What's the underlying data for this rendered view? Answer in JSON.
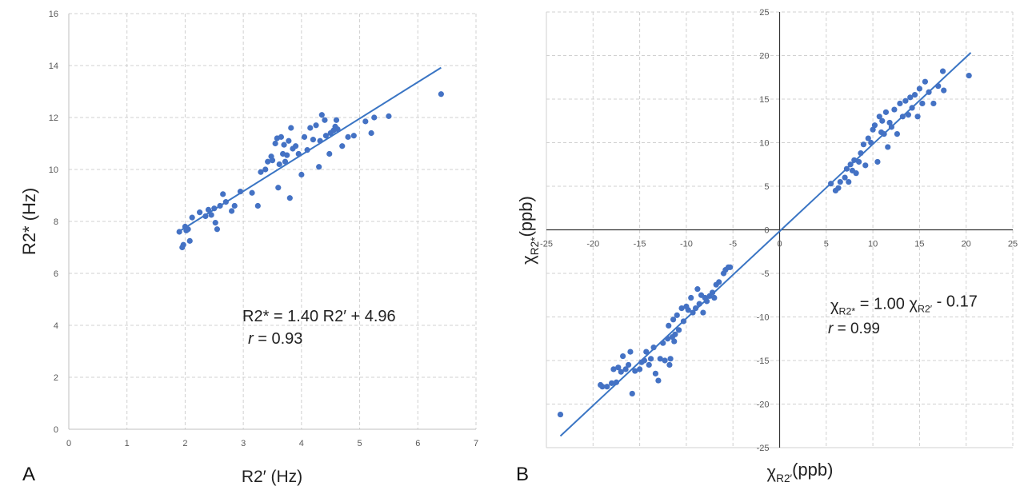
{
  "chart_data": [
    {
      "panel": "A",
      "type": "scatter",
      "xlabel": "R2′ (Hz)",
      "ylabel": "R2* (Hz)",
      "xlim": [
        0,
        7
      ],
      "ylim": [
        0,
        16
      ],
      "xticks": [
        0,
        1,
        2,
        3,
        4,
        5,
        6,
        7
      ],
      "yticks": [
        0,
        2,
        4,
        6,
        8,
        10,
        12,
        14,
        16
      ],
      "grid": true,
      "equation": "R2* = 1.40  R2′ + 4.96",
      "r_label": "r",
      "r_value": "= 0.93",
      "fit": {
        "slope": 1.4,
        "intercept": 4.96,
        "x_range": [
          1.9,
          6.4
        ]
      },
      "points": [
        [
          1.9,
          7.6
        ],
        [
          1.95,
          7.0
        ],
        [
          1.97,
          7.1
        ],
        [
          2.0,
          7.8
        ],
        [
          2.02,
          7.65
        ],
        [
          2.05,
          7.7
        ],
        [
          2.08,
          7.25
        ],
        [
          2.12,
          8.15
        ],
        [
          2.25,
          8.35
        ],
        [
          2.35,
          8.2
        ],
        [
          2.4,
          8.45
        ],
        [
          2.45,
          8.25
        ],
        [
          2.5,
          8.5
        ],
        [
          2.52,
          7.95
        ],
        [
          2.55,
          7.7
        ],
        [
          2.6,
          8.6
        ],
        [
          2.65,
          9.05
        ],
        [
          2.7,
          8.75
        ],
        [
          2.8,
          8.4
        ],
        [
          2.85,
          8.6
        ],
        [
          2.95,
          9.15
        ],
        [
          3.15,
          9.1
        ],
        [
          3.25,
          8.6
        ],
        [
          3.3,
          9.9
        ],
        [
          3.38,
          10.0
        ],
        [
          3.42,
          10.3
        ],
        [
          3.48,
          10.5
        ],
        [
          3.5,
          10.35
        ],
        [
          3.55,
          11.0
        ],
        [
          3.58,
          11.2
        ],
        [
          3.6,
          9.3
        ],
        [
          3.62,
          10.2
        ],
        [
          3.65,
          11.25
        ],
        [
          3.68,
          10.6
        ],
        [
          3.7,
          10.95
        ],
        [
          3.72,
          10.3
        ],
        [
          3.75,
          10.55
        ],
        [
          3.78,
          11.1
        ],
        [
          3.8,
          8.9
        ],
        [
          3.82,
          11.6
        ],
        [
          3.85,
          10.8
        ],
        [
          3.9,
          10.9
        ],
        [
          3.95,
          10.6
        ],
        [
          4.0,
          9.8
        ],
        [
          4.05,
          11.25
        ],
        [
          4.1,
          10.75
        ],
        [
          4.15,
          11.6
        ],
        [
          4.2,
          11.15
        ],
        [
          4.25,
          11.7
        ],
        [
          4.3,
          10.1
        ],
        [
          4.32,
          11.1
        ],
        [
          4.35,
          12.1
        ],
        [
          4.4,
          11.9
        ],
        [
          4.42,
          11.3
        ],
        [
          4.48,
          10.6
        ],
        [
          4.5,
          11.4
        ],
        [
          4.55,
          11.5
        ],
        [
          4.58,
          11.65
        ],
        [
          4.6,
          11.9
        ],
        [
          4.62,
          11.55
        ],
        [
          4.7,
          10.9
        ],
        [
          4.8,
          11.25
        ],
        [
          4.9,
          11.3
        ],
        [
          5.1,
          11.85
        ],
        [
          5.2,
          11.4
        ],
        [
          5.25,
          12.0
        ],
        [
          5.5,
          12.05
        ],
        [
          6.4,
          12.9
        ]
      ]
    },
    {
      "panel": "B",
      "type": "scatter",
      "xlabel": "χR2′(ppb)",
      "ylabel": "χR2*(ppb)",
      "xlim": [
        -25,
        25
      ],
      "ylim": [
        -25,
        25
      ],
      "xticks": [
        -25,
        -20,
        -15,
        -10,
        -5,
        0,
        5,
        10,
        15,
        20,
        25
      ],
      "yticks": [
        -25,
        -20,
        -15,
        -10,
        -5,
        0,
        5,
        10,
        15,
        20,
        25
      ],
      "grid": true,
      "equation_parts": [
        "χ",
        "R2*",
        " = 1.00  χ",
        "R2′",
        " - 0.17"
      ],
      "r_label": "r",
      "r_value": "= 0.99",
      "fit": {
        "slope": 1.0,
        "intercept": -0.17,
        "x_range": [
          -23.5,
          20.5
        ]
      },
      "points": [
        [
          -23.5,
          -21.2
        ],
        [
          -19.2,
          -17.8
        ],
        [
          -19.0,
          -18.0
        ],
        [
          -18.5,
          -18.0
        ],
        [
          -18.0,
          -17.6
        ],
        [
          -17.8,
          -16.0
        ],
        [
          -17.5,
          -17.5
        ],
        [
          -17.3,
          -15.8
        ],
        [
          -17.0,
          -16.3
        ],
        [
          -16.8,
          -14.5
        ],
        [
          -16.5,
          -16.0
        ],
        [
          -16.2,
          -15.5
        ],
        [
          -16.0,
          -14.0
        ],
        [
          -15.8,
          -18.8
        ],
        [
          -15.5,
          -16.2
        ],
        [
          -15.0,
          -16.0
        ],
        [
          -14.8,
          -15.2
        ],
        [
          -14.5,
          -15.0
        ],
        [
          -14.3,
          -14.0
        ],
        [
          -14.0,
          -15.5
        ],
        [
          -13.8,
          -14.8
        ],
        [
          -13.5,
          -13.5
        ],
        [
          -13.3,
          -16.5
        ],
        [
          -13.0,
          -17.3
        ],
        [
          -12.8,
          -14.8
        ],
        [
          -12.5,
          -13.0
        ],
        [
          -12.3,
          -15.0
        ],
        [
          -12.0,
          -12.5
        ],
        [
          -11.9,
          -11.0
        ],
        [
          -11.8,
          -15.5
        ],
        [
          -11.7,
          -14.8
        ],
        [
          -11.5,
          -12.3
        ],
        [
          -11.4,
          -10.3
        ],
        [
          -11.3,
          -12.8
        ],
        [
          -11.2,
          -12.0
        ],
        [
          -11.0,
          -9.8
        ],
        [
          -10.8,
          -11.5
        ],
        [
          -10.5,
          -9.0
        ],
        [
          -10.3,
          -10.5
        ],
        [
          -10.0,
          -8.8
        ],
        [
          -9.8,
          -9.2
        ],
        [
          -9.5,
          -7.8
        ],
        [
          -9.3,
          -9.5
        ],
        [
          -9.0,
          -9.0
        ],
        [
          -8.8,
          -6.8
        ],
        [
          -8.6,
          -8.5
        ],
        [
          -8.4,
          -7.5
        ],
        [
          -8.2,
          -9.5
        ],
        [
          -8.0,
          -7.8
        ],
        [
          -7.8,
          -8.2
        ],
        [
          -7.5,
          -7.6
        ],
        [
          -7.2,
          -7.2
        ],
        [
          -7.0,
          -7.8
        ],
        [
          -6.8,
          -6.3
        ],
        [
          -6.5,
          -6.0
        ],
        [
          -6.0,
          -5.0
        ],
        [
          -5.8,
          -4.6
        ],
        [
          -5.5,
          -4.3
        ],
        [
          -5.3,
          -4.3
        ],
        [
          5.5,
          5.3
        ],
        [
          6.0,
          4.5
        ],
        [
          6.3,
          4.8
        ],
        [
          6.5,
          5.5
        ],
        [
          7.0,
          6.0
        ],
        [
          7.2,
          7.0
        ],
        [
          7.4,
          5.5
        ],
        [
          7.6,
          7.5
        ],
        [
          7.8,
          6.8
        ],
        [
          8.0,
          8.0
        ],
        [
          8.2,
          6.5
        ],
        [
          8.5,
          7.8
        ],
        [
          8.7,
          8.8
        ],
        [
          9.0,
          9.8
        ],
        [
          9.2,
          7.4
        ],
        [
          9.5,
          10.5
        ],
        [
          9.8,
          10.0
        ],
        [
          10.0,
          11.5
        ],
        [
          10.2,
          12.0
        ],
        [
          10.5,
          7.8
        ],
        [
          10.7,
          13.0
        ],
        [
          10.9,
          11.2
        ],
        [
          11.0,
          12.5
        ],
        [
          11.2,
          11.0
        ],
        [
          11.4,
          13.5
        ],
        [
          11.6,
          9.5
        ],
        [
          11.8,
          12.3
        ],
        [
          12.0,
          11.8
        ],
        [
          12.3,
          13.8
        ],
        [
          12.6,
          11.0
        ],
        [
          12.9,
          14.5
        ],
        [
          13.2,
          13.0
        ],
        [
          13.5,
          14.8
        ],
        [
          13.8,
          13.2
        ],
        [
          14.0,
          15.2
        ],
        [
          14.2,
          14.0
        ],
        [
          14.5,
          15.5
        ],
        [
          14.8,
          13.0
        ],
        [
          15.0,
          16.2
        ],
        [
          15.3,
          14.5
        ],
        [
          15.6,
          17.0
        ],
        [
          16.0,
          15.8
        ],
        [
          16.5,
          14.5
        ],
        [
          17.0,
          16.5
        ],
        [
          17.5,
          18.2
        ],
        [
          17.6,
          16.0
        ],
        [
          20.3,
          17.7
        ]
      ]
    }
  ],
  "panel_labels": {
    "a": "A",
    "b": "B"
  }
}
